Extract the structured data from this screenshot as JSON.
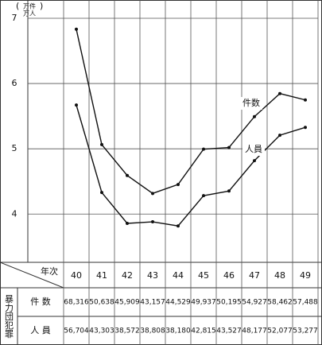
{
  "chart_data": {
    "type": "line",
    "ylabel_lines": [
      "万件",
      "万人"
    ],
    "category_header": "年次",
    "row_group_label": "暴力団犯罪",
    "categories": [
      "40",
      "41",
      "42",
      "43",
      "44",
      "45",
      "46",
      "47",
      "48",
      "49"
    ],
    "series": [
      {
        "name": "件数",
        "table_label": "件 数",
        "color": "#111111",
        "values": [
          6.8316,
          5.0638,
          4.5909,
          4.3157,
          4.4529,
          4.9937,
          5.0195,
          5.4927,
          5.8462,
          5.7488
        ],
        "value_labels": [
          "68,316",
          "50,638",
          "45,909",
          "43,157",
          "44,529",
          "49,937",
          "50,195",
          "54,927",
          "58,462",
          "57,488"
        ]
      },
      {
        "name": "人員",
        "table_label": "人 員",
        "color": "#111111",
        "values": [
          5.6704,
          4.3303,
          3.8572,
          3.8808,
          3.818,
          4.2815,
          4.3527,
          4.8177,
          5.2077,
          5.3277
        ],
        "value_labels": [
          "56,704",
          "43,303",
          "38,572",
          "38,808",
          "38,180",
          "42,815",
          "43,527",
          "48,177",
          "52,077",
          "53,277"
        ]
      }
    ],
    "ylim": [
      3.26,
      7.28
    ],
    "yticks": [
      4,
      5,
      6,
      7
    ],
    "grid": true
  }
}
